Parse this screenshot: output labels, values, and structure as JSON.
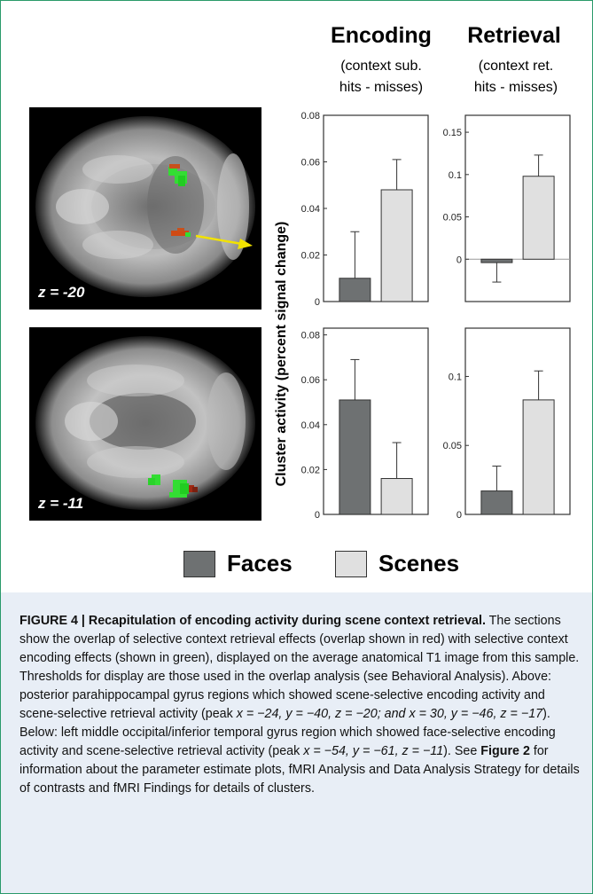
{
  "figure": {
    "header_encoding": "Encoding",
    "header_retrieval": "Retrieval",
    "sub_encoding_line1": "(context sub.",
    "sub_encoding_line2": "hits - misses)",
    "sub_retrieval_line1": "(context ret.",
    "sub_retrieval_line2": "hits - misses)",
    "y_axis_label": "Cluster activity (percent signal change)",
    "brain_top_label": "z = -20",
    "brain_bottom_label": "z = -11",
    "legend": [
      {
        "label": "Faces",
        "color": "#6e7172"
      },
      {
        "label": "Scenes",
        "color": "#e0e0e0"
      }
    ]
  },
  "chart_data": [
    {
      "type": "bar",
      "panel": "top-left",
      "categories": [
        "Faces",
        "Scenes"
      ],
      "values": [
        0.01,
        0.048
      ],
      "errors": [
        0.02,
        0.013
      ],
      "ylim": [
        0,
        0.08
      ],
      "yticks": [
        0,
        0.02,
        0.04,
        0.06,
        0.08
      ],
      "ytick_labels": [
        "0",
        "0.02",
        "0.04",
        "0.06",
        "0.08"
      ],
      "colors": [
        "#6e7172",
        "#e0e0e0"
      ]
    },
    {
      "type": "bar",
      "panel": "top-right",
      "categories": [
        "Faces",
        "Scenes"
      ],
      "values": [
        -0.004,
        0.098
      ],
      "errors": [
        0.023,
        0.025
      ],
      "ylim": [
        -0.05,
        0.17
      ],
      "yticks": [
        0,
        0.05,
        0.1,
        0.15
      ],
      "ytick_labels": [
        "0",
        "0.05",
        "0.1",
        "0.15"
      ],
      "zero_line": true,
      "colors": [
        "#6e7172",
        "#e0e0e0"
      ]
    },
    {
      "type": "bar",
      "panel": "bottom-left",
      "categories": [
        "Faces",
        "Scenes"
      ],
      "values": [
        0.051,
        0.016
      ],
      "errors": [
        0.018,
        0.016
      ],
      "ylim": [
        0,
        0.083
      ],
      "yticks": [
        0,
        0.02,
        0.04,
        0.06,
        0.08
      ],
      "ytick_labels": [
        "0",
        "0.02",
        "0.04",
        "0.06",
        "0.08"
      ],
      "colors": [
        "#6e7172",
        "#e0e0e0"
      ]
    },
    {
      "type": "bar",
      "panel": "bottom-right",
      "categories": [
        "Faces",
        "Scenes"
      ],
      "values": [
        0.017,
        0.083
      ],
      "errors": [
        0.018,
        0.021
      ],
      "ylim": [
        0,
        0.135
      ],
      "yticks": [
        0,
        0.05,
        0.1
      ],
      "ytick_labels": [
        "0",
        "0.05",
        "0.1"
      ],
      "colors": [
        "#6e7172",
        "#e0e0e0"
      ]
    }
  ],
  "caption": {
    "figure_label": "FIGURE 4 | Recapitulation of encoding activity during scene context retrieval.",
    "body_1": " The sections show the overlap of selective context retrieval effects (overlap shown in red) with selective context encoding effects (shown in green), displayed on the average anatomical T1 image from this sample. Thresholds for display are those used in the overlap analysis (see Behavioral Analysis). Above: posterior parahippocampal gyrus regions which showed scene-selective encoding activity and scene-selective retrieval activity (peak ",
    "coords_1": "x = −24, y = −40, z = −20; and x = 30, y = −46, z = −17",
    "body_2": "). Below: left middle occipital/inferior temporal gyrus region which showed face-selective encoding activity and scene-selective retrieval activity (peak ",
    "coords_2": "x = −54, y = −61, z = −11",
    "body_3": "). See ",
    "figure_ref": "Figure 2",
    "body_4": " for information about the parameter estimate plots, fMRI Analysis and Data Analysis Strategy for details of contrasts and fMRI Findings for details of clusters."
  }
}
